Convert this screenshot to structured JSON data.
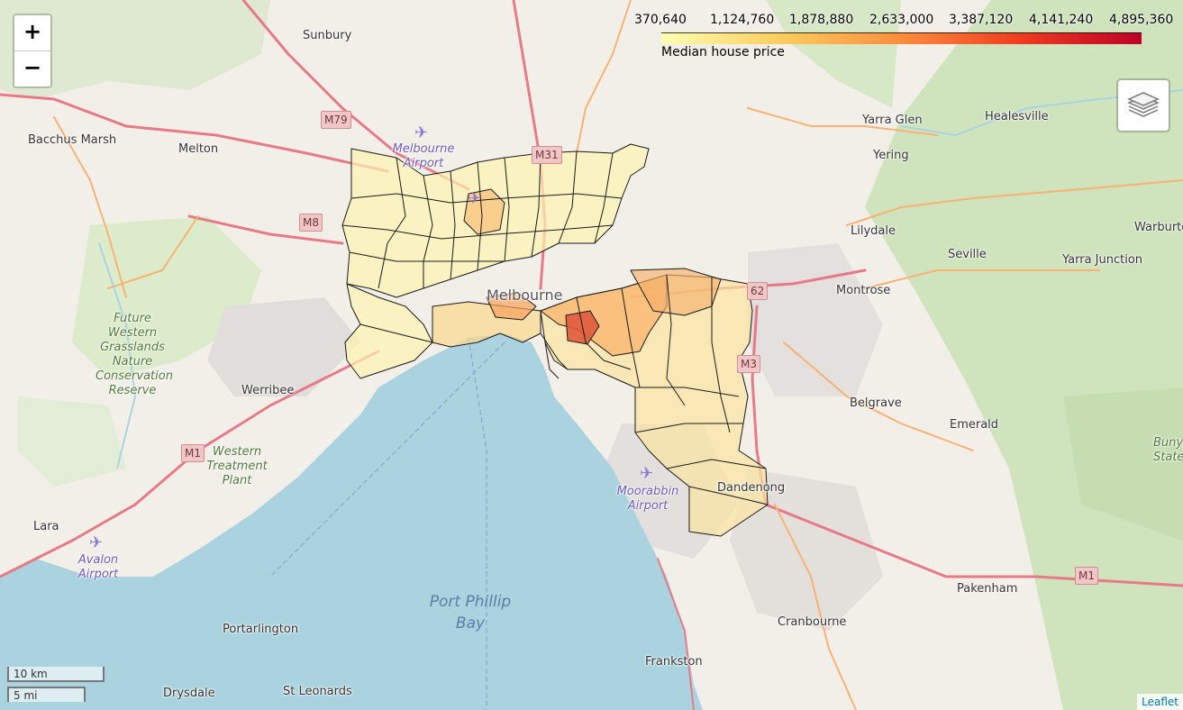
{
  "map": {
    "zoom_in_label": "+",
    "zoom_out_label": "−",
    "attribution": "Leaflet",
    "scale": {
      "metric": "10 km",
      "imperial": "5 mi"
    },
    "legend": {
      "caption": "Median house price",
      "ticks": [
        "370,640",
        "1,124,760",
        "1,878,880",
        "2,633,000",
        "3,387,120",
        "4,141,240",
        "4,895,360"
      ],
      "colors": [
        "#ffffb2",
        "#fecc5c",
        "#fd8d3c",
        "#f03b20",
        "#bd0026"
      ]
    },
    "places": [
      "Sunbury",
      "Bacchus Marsh",
      "Melton",
      "Yarra Glen",
      "Healesville",
      "Yering",
      "Lilydale",
      "Warburton",
      "Seville",
      "Yarra Junction",
      "Montrose",
      "Melbourne",
      "Werribee",
      "Belgrave",
      "Emerald",
      "Dandenong",
      "Lara",
      "Pakenham",
      "Cranbourne",
      "Portarlington",
      "Frankston",
      "Drysdale",
      "St Leonards"
    ],
    "parks": [
      "Future Western Grasslands Nature Conservation Reserve",
      "Western Treatment Plant",
      "Bunyip State"
    ],
    "airports": [
      "Melbourne Airport",
      "Moorabbin Airport",
      "Avalon Airport"
    ],
    "water": "Port Phillip Bay",
    "roads": [
      "M79",
      "M31",
      "M8",
      "62",
      "M3",
      "M1",
      "M1"
    ]
  }
}
